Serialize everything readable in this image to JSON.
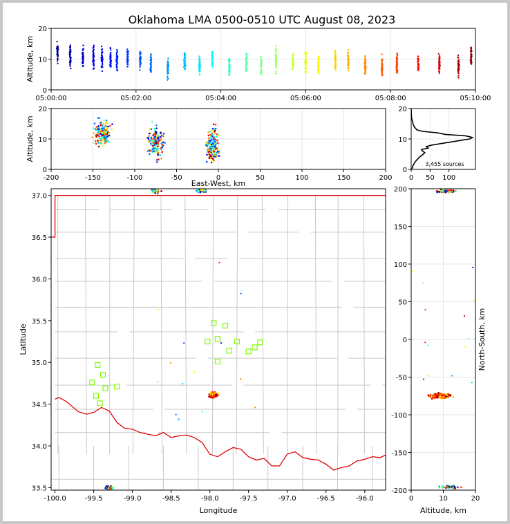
{
  "title": "Oklahoma LMA 0500-0510 UTC August 08, 2023",
  "chart_data": [
    {
      "id": "time-height",
      "type": "scatter",
      "xlabel": "",
      "ylabel": "Altitude, km",
      "xlim": [
        "05:00:00",
        "05:10:00"
      ],
      "ylim": [
        0,
        20
      ],
      "xticks": [
        "05:00:00",
        "05:02:00",
        "05:04:00",
        "05:06:00",
        "05:08:00",
        "05:10:00"
      ],
      "yticks": [
        0,
        10,
        20
      ],
      "colormap": "jet, by time",
      "clusters": [
        {
          "t": 0.15,
          "alt": 12
        },
        {
          "t": 0.45,
          "alt": 11
        },
        {
          "t": 0.75,
          "alt": 10.5
        },
        {
          "t": 1.0,
          "alt": 10.5
        },
        {
          "t": 1.2,
          "alt": 10
        },
        {
          "t": 1.4,
          "alt": 10
        },
        {
          "t": 1.55,
          "alt": 9.5
        },
        {
          "t": 1.8,
          "alt": 10
        },
        {
          "t": 2.1,
          "alt": 9.5
        },
        {
          "t": 2.35,
          "alt": 8.5
        },
        {
          "t": 2.75,
          "alt": 7
        },
        {
          "t": 3.15,
          "alt": 9.5
        },
        {
          "t": 3.5,
          "alt": 8
        },
        {
          "t": 3.8,
          "alt": 10
        },
        {
          "t": 4.2,
          "alt": 7
        },
        {
          "t": 4.6,
          "alt": 9
        },
        {
          "t": 4.95,
          "alt": 8.5
        },
        {
          "t": 5.3,
          "alt": 9.5
        },
        {
          "t": 5.7,
          "alt": 9
        },
        {
          "t": 6.0,
          "alt": 9
        },
        {
          "t": 6.3,
          "alt": 8.5
        },
        {
          "t": 6.7,
          "alt": 9.5
        },
        {
          "t": 7.0,
          "alt": 9
        },
        {
          "t": 7.4,
          "alt": 8
        },
        {
          "t": 7.8,
          "alt": 7
        },
        {
          "t": 8.15,
          "alt": 9
        },
        {
          "t": 8.65,
          "alt": 8.5
        },
        {
          "t": 9.15,
          "alt": 8.5
        },
        {
          "t": 9.6,
          "alt": 8
        },
        {
          "t": 9.9,
          "alt": 11
        }
      ]
    },
    {
      "id": "east-west-altitude",
      "type": "scatter",
      "xlabel": "East-West, km",
      "ylabel": "Altitude, km",
      "xlim": [
        -200,
        200
      ],
      "ylim": [
        0,
        20
      ],
      "xticks": [
        -200,
        -150,
        -100,
        -50,
        0,
        50,
        100,
        150,
        200
      ],
      "yticks": [
        0,
        10,
        20
      ],
      "clusters": [
        {
          "x": -138,
          "alt": 12,
          "spread_x": 9,
          "spread_alt": 4
        },
        {
          "x": -75,
          "alt": 9,
          "spread_x": 8,
          "spread_alt": 5
        },
        {
          "x": -7,
          "alt": 8,
          "spread_x": 7,
          "spread_alt": 5
        }
      ]
    },
    {
      "id": "altitude-histogram",
      "type": "line",
      "xlim": [
        0,
        170
      ],
      "ylim": [
        0,
        20
      ],
      "xticks": [
        0,
        50,
        100
      ],
      "yticks": [
        0,
        10,
        20
      ],
      "annotation": "3,455 sources",
      "profile": [
        {
          "alt": 0.2,
          "count": 2
        },
        {
          "alt": 1,
          "count": 4
        },
        {
          "alt": 2,
          "count": 8
        },
        {
          "alt": 3,
          "count": 14
        },
        {
          "alt": 4,
          "count": 22
        },
        {
          "alt": 5,
          "count": 32
        },
        {
          "alt": 5.5,
          "count": 36
        },
        {
          "alt": 6,
          "count": 30
        },
        {
          "alt": 6.5,
          "count": 27
        },
        {
          "alt": 7,
          "count": 45
        },
        {
          "alt": 7.5,
          "count": 40
        },
        {
          "alt": 8,
          "count": 55
        },
        {
          "alt": 8.5,
          "count": 80
        },
        {
          "alt": 9,
          "count": 105
        },
        {
          "alt": 9.5,
          "count": 130
        },
        {
          "alt": 10,
          "count": 155
        },
        {
          "alt": 10.5,
          "count": 162
        },
        {
          "alt": 11,
          "count": 145
        },
        {
          "alt": 11.5,
          "count": 90
        },
        {
          "alt": 12,
          "count": 70
        },
        {
          "alt": 12.5,
          "count": 30
        },
        {
          "alt": 13,
          "count": 15
        },
        {
          "alt": 14,
          "count": 8
        },
        {
          "alt": 15,
          "count": 5
        },
        {
          "alt": 16,
          "count": 3
        },
        {
          "alt": 17,
          "count": 1
        },
        {
          "alt": 20,
          "count": 0
        }
      ]
    },
    {
      "id": "plan-view-map",
      "type": "scatter",
      "xlabel": "Longitude",
      "ylabel": "Latitude",
      "xlim": [
        -100.05,
        -95.73
      ],
      "ylim": [
        33.47,
        37.08
      ],
      "xticks": [
        -100.0,
        -99.5,
        -99.0,
        -98.5,
        -98.0,
        -97.5,
        -97.0,
        -96.5,
        -96.0
      ],
      "yticks": [
        33.5,
        34.0,
        34.5,
        35.0,
        35.5,
        36.0,
        36.5,
        37.0
      ],
      "state_border": [
        [
          -100.05,
          36.5
        ],
        [
          -100.0,
          36.5
        ],
        [
          -100.0,
          37.0
        ],
        [
          -95.73,
          37.0
        ]
      ],
      "red_river": [
        [
          -100.0,
          34.56
        ],
        [
          -99.95,
          34.58
        ],
        [
          -99.85,
          34.53
        ],
        [
          -99.7,
          34.41
        ],
        [
          -99.6,
          34.38
        ],
        [
          -99.5,
          34.4
        ],
        [
          -99.4,
          34.46
        ],
        [
          -99.3,
          34.42
        ],
        [
          -99.2,
          34.28
        ],
        [
          -99.1,
          34.21
        ],
        [
          -99.0,
          34.2
        ],
        [
          -98.9,
          34.16
        ],
        [
          -98.8,
          34.14
        ],
        [
          -98.7,
          34.12
        ],
        [
          -98.6,
          34.16
        ],
        [
          -98.5,
          34.1
        ],
        [
          -98.4,
          34.12
        ],
        [
          -98.3,
          34.13
        ],
        [
          -98.2,
          34.1
        ],
        [
          -98.1,
          34.04
        ],
        [
          -98.0,
          33.9
        ],
        [
          -97.9,
          33.87
        ],
        [
          -97.8,
          33.93
        ],
        [
          -97.7,
          33.98
        ],
        [
          -97.6,
          33.96
        ],
        [
          -97.5,
          33.87
        ],
        [
          -97.4,
          33.83
        ],
        [
          -97.3,
          33.85
        ],
        [
          -97.2,
          33.76
        ],
        [
          -97.1,
          33.76
        ],
        [
          -97.0,
          33.9
        ],
        [
          -96.9,
          33.93
        ],
        [
          -96.8,
          33.86
        ],
        [
          -96.7,
          33.84
        ],
        [
          -96.6,
          33.83
        ],
        [
          -96.5,
          33.78
        ],
        [
          -96.4,
          33.71
        ],
        [
          -96.3,
          33.74
        ],
        [
          -96.2,
          33.76
        ],
        [
          -96.1,
          33.82
        ],
        [
          -96.0,
          33.84
        ],
        [
          -95.9,
          33.87
        ],
        [
          -95.8,
          33.86
        ],
        [
          -95.73,
          33.89
        ]
      ],
      "stations": [
        {
          "lon": -97.95,
          "lat": 35.47
        },
        {
          "lon": -97.8,
          "lat": 35.44
        },
        {
          "lon": -97.9,
          "lat": 35.28
        },
        {
          "lon": -98.03,
          "lat": 35.25
        },
        {
          "lon": -97.65,
          "lat": 35.25
        },
        {
          "lon": -97.75,
          "lat": 35.14
        },
        {
          "lon": -97.35,
          "lat": 35.24
        },
        {
          "lon": -97.42,
          "lat": 35.18
        },
        {
          "lon": -97.5,
          "lat": 35.13
        },
        {
          "lon": -97.9,
          "lat": 35.01
        },
        {
          "lon": -99.45,
          "lat": 34.97
        },
        {
          "lon": -99.38,
          "lat": 34.85
        },
        {
          "lon": -99.52,
          "lat": 34.76
        },
        {
          "lon": -99.35,
          "lat": 34.69
        },
        {
          "lon": -99.2,
          "lat": 34.71
        },
        {
          "lon": -99.47,
          "lat": 34.6
        },
        {
          "lon": -99.42,
          "lat": 34.51
        }
      ],
      "clusters": [
        {
          "lon": -97.95,
          "lat": 34.61
        },
        {
          "lon": -99.3,
          "lat": 33.5
        },
        {
          "lon": -98.7,
          "lat": 37.05
        },
        {
          "lon": -98.1,
          "lat": 37.06
        }
      ]
    },
    {
      "id": "altitude-north-south",
      "type": "scatter",
      "xlabel": "Altitude, km",
      "ylabel": "North-South, km",
      "xlim": [
        0,
        20
      ],
      "ylim": [
        -200,
        200
      ],
      "xticks": [
        0,
        10,
        20
      ],
      "yticks": [
        -200,
        -150,
        -100,
        -50,
        0,
        50,
        100,
        150,
        200
      ],
      "clusters": [
        {
          "alt": 9,
          "y": -75
        },
        {
          "alt": 11,
          "y": 197
        },
        {
          "alt": 12,
          "y": -196
        }
      ]
    }
  ]
}
